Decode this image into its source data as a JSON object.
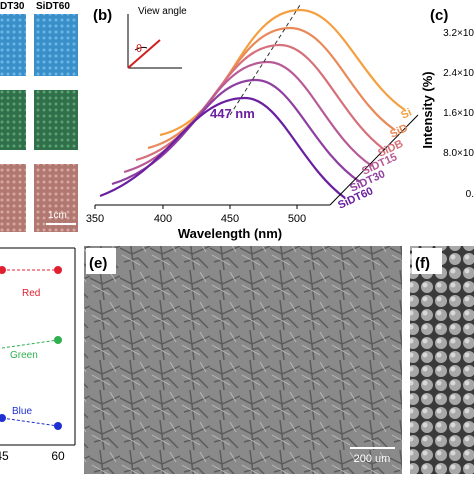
{
  "panel_a": {
    "column_labels": [
      "DT30",
      "SiDT60"
    ],
    "scale_bar": "1cm"
  },
  "panel_b": {
    "label": "(b)",
    "inset_label": "View angle",
    "inset_angle": "θ",
    "peak_label": "447 nm",
    "x_axis_label": "Wavelength (nm)",
    "x_tick_labels": [
      "350",
      "400",
      "450",
      "500"
    ],
    "curve_labels": [
      "Si",
      "SiD",
      "SiDB",
      "SiDT15",
      "SiDT30",
      "SiDT60"
    ]
  },
  "panel_c": {
    "label": "(c)",
    "y_axis_label": "Intensity (%)",
    "y_tick_labels": [
      "3.2×10",
      "2.4×10",
      "1.6×10",
      "8.0×10",
      "0."
    ]
  },
  "panel_d": {
    "series_labels": [
      "Red",
      "Green",
      "Blue"
    ],
    "x_tick_labels": [
      "45",
      "60"
    ]
  },
  "panel_e": {
    "label": "(e)",
    "scale_bar": "200 um"
  },
  "panel_f": {
    "label": "(f)"
  }
}
